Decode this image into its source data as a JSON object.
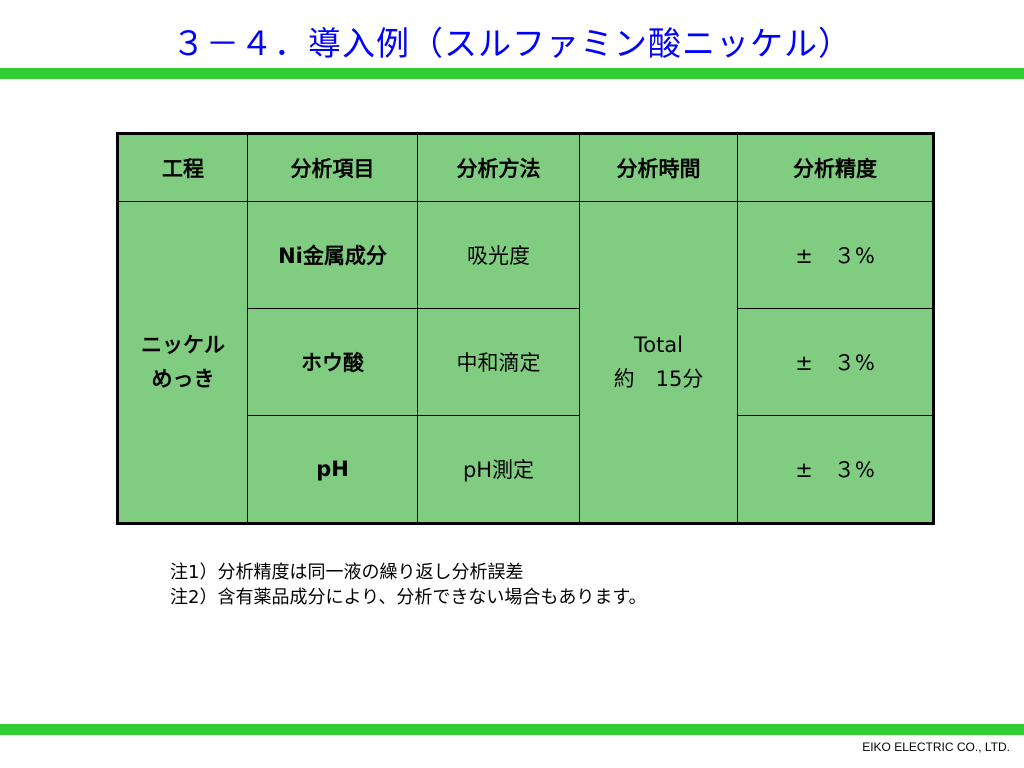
{
  "title": "３－４．導入例（スルファミン酸ニッケル）",
  "colors": {
    "title": "#0000ff",
    "rule": "#33cc33",
    "table_fill": "#80cc80",
    "border": "#000000"
  },
  "table": {
    "headers": [
      "工程",
      "分析項目",
      "分析方法",
      "分析時間",
      "分析精度"
    ],
    "process": {
      "line1": "ニッケル",
      "line2": "めっき"
    },
    "rows": [
      {
        "item": "Ni金属成分",
        "method": "吸光度",
        "accuracy": "±　３%"
      },
      {
        "item": "ホウ酸",
        "method": "中和滴定",
        "accuracy": "±　３%"
      },
      {
        "item": "pH",
        "method": "pH測定",
        "accuracy": "±　３%"
      }
    ],
    "time": {
      "line1": "Total",
      "line2": "約　15分"
    }
  },
  "notes": [
    "注1）分析精度は同一液の繰り返し分析誤差",
    "注2）含有薬品成分により、分析できない場合もあります。"
  ],
  "footer": "EIKO ELECTRIC CO., LTD."
}
